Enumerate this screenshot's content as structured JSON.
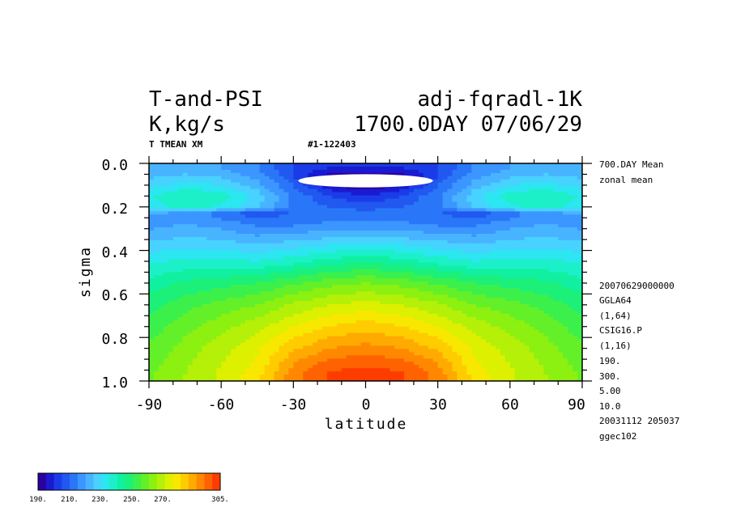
{
  "header": {
    "title_left": "T-and-PSI",
    "title_right": "adj-fqradl-1K",
    "units": "K,kg/s",
    "date_line": "1700.0DAY 07/06/29",
    "variable_label": "T  TMEAN XM",
    "run_id": "#1-122403"
  },
  "side_info": {
    "top": [
      "700.DAY Mean",
      "zonal mean"
    ],
    "bottom": [
      "20070629000000",
      "GGLA64",
      "(1,64)",
      "CSIG16.P",
      "(1,16)",
      "190.",
      "300.",
      "5.00",
      "10.0",
      "20031112 205037",
      "ggec102"
    ]
  },
  "colorbar": {
    "labels": [
      "190.",
      "210.",
      "230.",
      "250.",
      "270.",
      "305."
    ],
    "colors": [
      "#2a00a0",
      "#1a1ad0",
      "#1a3ce8",
      "#2058f0",
      "#2a76f8",
      "#3c96ff",
      "#48b4ff",
      "#48d2ff",
      "#2ce6f0",
      "#1cf0c8",
      "#10f0a0",
      "#1cf078",
      "#3cf04c",
      "#64f028",
      "#8cf010",
      "#b4f008",
      "#dcf000",
      "#f8e800",
      "#ffcc00",
      "#ffaa00",
      "#ff8800",
      "#ff6200",
      "#ff3c00"
    ]
  },
  "chart_data": {
    "type": "heatmap",
    "title": "T-and-PSI",
    "xlabel": "latitude",
    "ylabel": "sigma",
    "xlim": [
      -90,
      90
    ],
    "ylim": [
      1.0,
      0.0
    ],
    "x_ticks": [
      "-90",
      "-60",
      "-30",
      "0",
      "30",
      "60",
      "90"
    ],
    "y_ticks": [
      "0.0",
      "0.2",
      "0.4",
      "0.6",
      "0.8",
      "1.0"
    ],
    "x": [
      -90,
      -75,
      -60,
      -45,
      -30,
      -15,
      0,
      15,
      30,
      45,
      60,
      75,
      90
    ],
    "y": [
      0.02,
      0.06,
      0.1,
      0.15,
      0.2,
      0.23,
      0.28,
      0.35,
      0.45,
      0.55,
      0.65,
      0.75,
      0.85,
      0.92,
      0.97
    ],
    "z": [
      [
        220,
        222,
        220,
        215,
        205,
        200,
        200,
        200,
        205,
        215,
        220,
        222,
        220
      ],
      [
        224,
        226,
        224,
        218,
        205,
        192,
        188,
        192,
        205,
        218,
        224,
        226,
        224
      ],
      [
        228,
        232,
        230,
        222,
        210,
        196,
        190,
        196,
        210,
        222,
        230,
        232,
        228
      ],
      [
        234,
        240,
        238,
        228,
        214,
        205,
        200,
        205,
        214,
        228,
        238,
        240,
        234
      ],
      [
        232,
        238,
        234,
        226,
        214,
        210,
        208,
        210,
        214,
        226,
        234,
        238,
        232
      ],
      [
        220,
        218,
        212,
        206,
        210,
        212,
        212,
        212,
        210,
        206,
        212,
        218,
        220
      ],
      [
        218,
        220,
        218,
        214,
        214,
        216,
        216,
        216,
        214,
        214,
        218,
        220,
        218
      ],
      [
        224,
        226,
        225,
        222,
        224,
        226,
        227,
        226,
        224,
        222,
        225,
        226,
        224
      ],
      [
        234,
        236,
        236,
        235,
        238,
        242,
        244,
        242,
        238,
        235,
        236,
        236,
        234
      ],
      [
        242,
        246,
        248,
        250,
        254,
        258,
        260,
        258,
        254,
        250,
        248,
        246,
        242
      ],
      [
        248,
        253,
        257,
        260,
        266,
        270,
        272,
        270,
        266,
        260,
        257,
        253,
        248
      ],
      [
        252,
        258,
        263,
        268,
        275,
        280,
        283,
        280,
        275,
        268,
        263,
        258,
        252
      ],
      [
        256,
        262,
        268,
        274,
        284,
        290,
        292,
        290,
        284,
        274,
        268,
        262,
        256
      ],
      [
        258,
        264,
        270,
        276,
        290,
        297,
        299,
        297,
        290,
        276,
        270,
        264,
        258
      ],
      [
        259,
        265,
        271,
        278,
        293,
        301,
        303,
        301,
        293,
        278,
        271,
        265,
        259
      ]
    ],
    "undefined_region": {
      "lat_range": [
        -28,
        28
      ],
      "sigma_range": [
        0.05,
        0.11
      ]
    },
    "contour_range": {
      "min": 190,
      "max": 300,
      "interval": 5.0
    }
  }
}
